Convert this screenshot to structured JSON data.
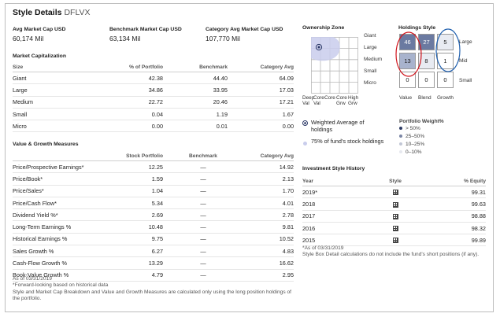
{
  "header": {
    "title": "Style Details",
    "ticker": "DFLVX"
  },
  "market_caps": [
    {
      "label": "Avg Market Cap USD",
      "value": "60,174 Mil"
    },
    {
      "label": "Benchmark Market Cap USD",
      "value": "63,134 Mil"
    },
    {
      "label": "Category Avg Market Cap USD",
      "value": "107,770 Mil"
    }
  ],
  "market_cap_section": {
    "title": "Market Capitalization",
    "headers": [
      "Size",
      "% of Portfolio",
      "Benchmark",
      "Category Avg"
    ],
    "rows": [
      [
        "Giant",
        "42.38",
        "44.40",
        "64.09"
      ],
      [
        "Large",
        "34.86",
        "33.95",
        "17.03"
      ],
      [
        "Medium",
        "22.72",
        "20.46",
        "17.21"
      ],
      [
        "Small",
        "0.04",
        "1.19",
        "1.67"
      ],
      [
        "Micro",
        "0.00",
        "0.01",
        "0.00"
      ]
    ]
  },
  "value_growth_section": {
    "title": "Value & Growth Measures",
    "headers": [
      "",
      "Stock Portfolio",
      "Benchmark",
      "Category Avg"
    ],
    "rows": [
      [
        "Price/Prospective Earnings*",
        "12.25",
        "—",
        "14.92"
      ],
      [
        "Price/Book*",
        "1.59",
        "—",
        "2.13"
      ],
      [
        "Price/Sales*",
        "1.04",
        "—",
        "1.70"
      ],
      [
        "Price/Cash Flow*",
        "5.34",
        "—",
        "4.01"
      ],
      [
        "Dividend Yield %*",
        "2.69",
        "—",
        "2.78"
      ],
      [
        "Long-Term Earnings %",
        "10.48",
        "—",
        "9.81"
      ],
      [
        "Historical Earnings %",
        "9.75",
        "—",
        "10.52"
      ],
      [
        "Sales Growth %",
        "6.27",
        "—",
        "4.83"
      ],
      [
        "Cash-Flow Growth %",
        "13.29",
        "—",
        "16.62"
      ],
      [
        "Book-Value Growth %",
        "4.79",
        "—",
        "2.95"
      ]
    ]
  },
  "left_footnotes": {
    "line1": "As of 03/31/2019",
    "line2": "*Forward-looking based on historical data",
    "line3": "Style and Market Cap Breakdown and Value and Growth Measures are calculated only using the long position holdings of the portfolio."
  },
  "ownership_zone": {
    "title": "Ownership Zone",
    "size_labels": [
      "Giant",
      "Large",
      "Medium",
      "Small",
      "Micro"
    ],
    "style_labels": [
      "Deep Val",
      "Core Val",
      "Core",
      "Core Grw",
      "High Grw"
    ],
    "legend": [
      {
        "text": "Weighted Average of holdings"
      },
      {
        "text": "75% of fund's stock holdings"
      }
    ]
  },
  "holdings_style": {
    "title": "Holdings Style",
    "cells": [
      [
        "46",
        "27",
        "5"
      ],
      [
        "13",
        "8",
        "1"
      ],
      [
        "0",
        "0",
        "0"
      ]
    ],
    "shade": [
      [
        0.46,
        0.27,
        0.05
      ],
      [
        0.13,
        0.08,
        0.01
      ],
      [
        0,
        0,
        0
      ]
    ],
    "row_labels": [
      "Large",
      "Mid",
      "Small"
    ],
    "col_labels": [
      "Value",
      "Blend",
      "Growth"
    ],
    "colors": {
      "dark": "#6b7aa1",
      "mid": "#a8b3cd",
      "light": "#e8ebf2"
    }
  },
  "portfolio_weight": {
    "title": "Portfolio Weight%",
    "items": [
      ">  50%",
      "25–50%",
      "10–25%",
      "0–10%"
    ]
  },
  "investment_history": {
    "title": "Investment Style History",
    "headers": [
      "Year",
      "Style",
      "% Equity"
    ],
    "rows": [
      [
        "2019*",
        "99.31"
      ],
      [
        "2018",
        "99.63"
      ],
      [
        "2017",
        "98.88"
      ],
      [
        "2016",
        "98.32"
      ],
      [
        "2015",
        "99.89"
      ]
    ],
    "note1": "*As of 03/31/2019",
    "note2": "Style Box Detail calculations do not include the fund's short positions (if any)."
  },
  "accent": {
    "circle_red": "#d0141c",
    "circle_blue": "#1f5fae",
    "zone": "#c9cdec"
  }
}
